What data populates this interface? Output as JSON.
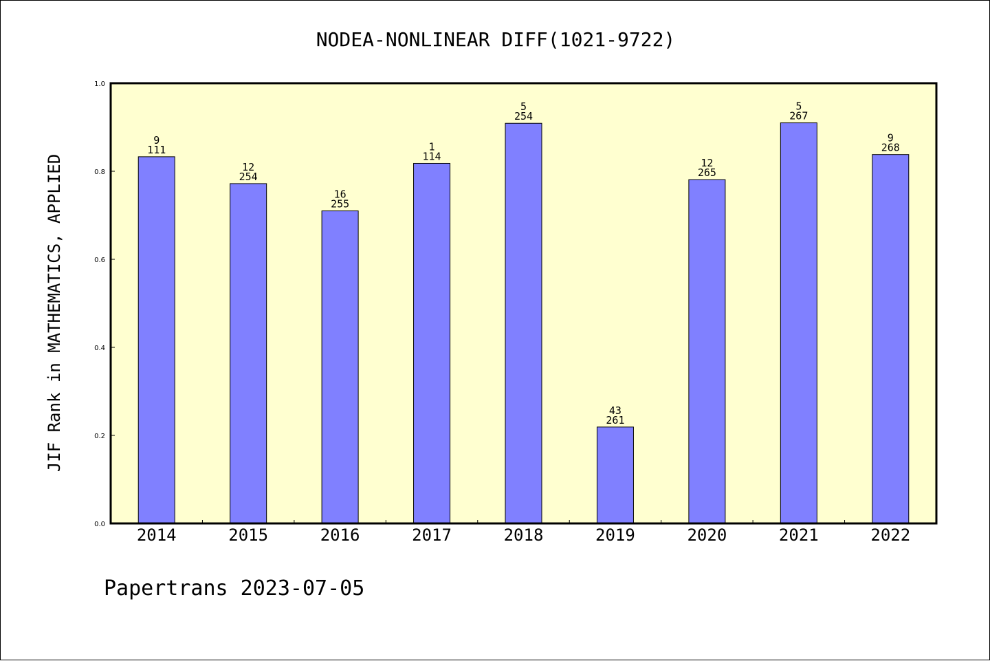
{
  "chart_data": {
    "type": "bar",
    "title": "NODEA-NONLINEAR DIFF(1021-9722)",
    "xlabel": "",
    "ylabel": "JIF Rank in MATHEMATICS, APPLIED",
    "categories": [
      "2014",
      "2015",
      "2016",
      "2017",
      "2018",
      "2019",
      "2020",
      "2021",
      "2022"
    ],
    "values": [
      0.833,
      0.772,
      0.71,
      0.818,
      0.909,
      0.219,
      0.781,
      0.91,
      0.838
    ],
    "rank": [
      "9",
      "12",
      "16",
      "1",
      "5",
      "43",
      "12",
      "5",
      "9"
    ],
    "total": [
      "111",
      "254",
      "255",
      "114",
      "254",
      "261",
      "265",
      "267",
      "268"
    ],
    "ylim": [
      0,
      1.0
    ],
    "yticks": [
      "0.0",
      "0.2",
      "0.4",
      "0.6",
      "0.8",
      "1.0"
    ],
    "grid": false,
    "colors": {
      "plot_background": "#ffffd0",
      "bar": "#8080ff",
      "bar_edge": "#000000"
    }
  },
  "footer": {
    "text": "Papertrans 2023-07-05"
  }
}
